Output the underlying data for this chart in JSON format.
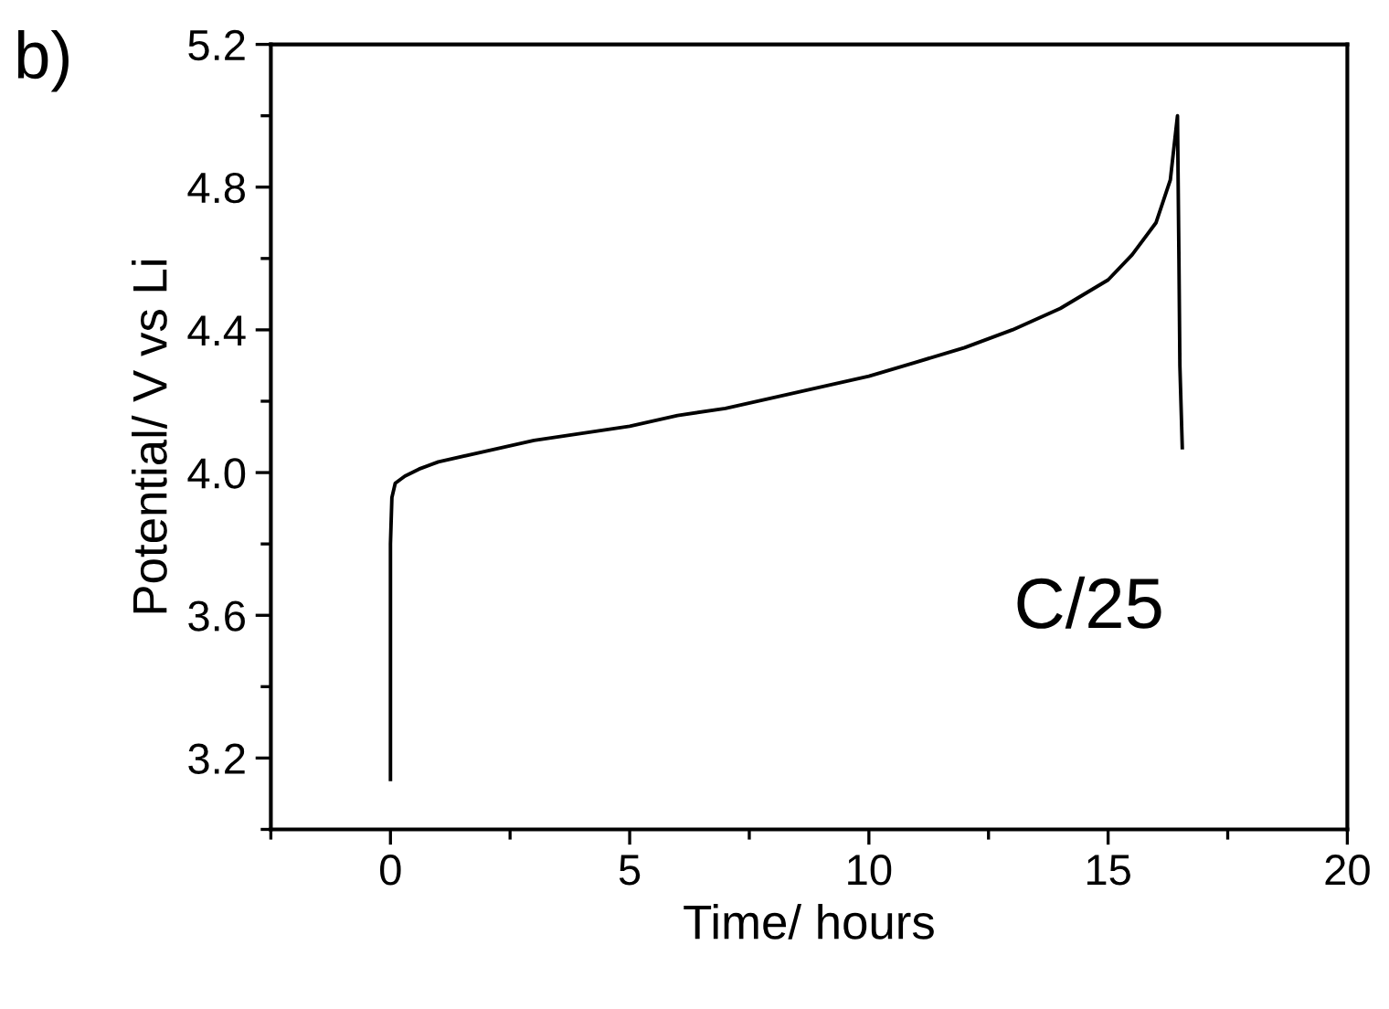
{
  "chart_data": {
    "type": "line",
    "xlabel": "Time/ hours",
    "ylabel": "Potential/ V vs Li",
    "annotations": [
      "b)",
      "C/25"
    ],
    "series": [
      {
        "color": "#000000",
        "x": [
          0,
          0,
          0.03,
          0.1,
          0.3,
          0.6,
          1,
          2,
          3,
          4,
          5,
          6,
          7,
          8,
          9,
          10,
          11,
          12,
          13,
          14,
          15,
          15.5,
          16,
          16.3,
          16.45,
          16.48,
          16.5,
          16.55
        ],
        "values": [
          3.14,
          3.8,
          3.93,
          3.97,
          3.99,
          4.01,
          4.03,
          4.06,
          4.09,
          4.11,
          4.13,
          4.16,
          4.18,
          4.21,
          4.24,
          4.27,
          4.31,
          4.35,
          4.4,
          4.46,
          4.54,
          4.61,
          4.7,
          4.82,
          5.0,
          4.6,
          4.3,
          4.07
        ]
      }
    ],
    "xlim": [
      -2.5,
      20
    ],
    "xticks": [
      0,
      5,
      10,
      15,
      20
    ],
    "ylim": [
      3.0,
      5.2
    ],
    "yticks": [
      3.2,
      3.6,
      {
        "value": 4,
        "label": "4.0"
      },
      4.4,
      4.8,
      5.2
    ],
    "grid": false,
    "legend": false,
    "marker": "none",
    "line_style": "solid"
  }
}
